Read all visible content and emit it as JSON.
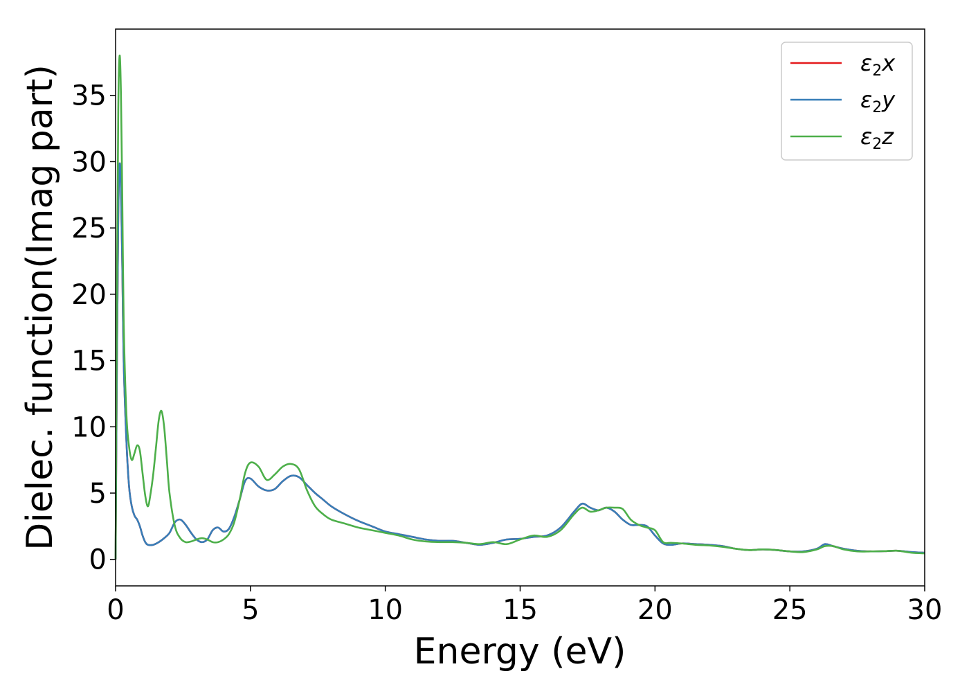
{
  "chart_data": {
    "type": "line",
    "title": "",
    "xlabel": "Energy (eV)",
    "ylabel": "Dielec. function(Imag part)",
    "xlim": [
      0,
      30
    ],
    "ylim": [
      -2,
      40
    ],
    "xticks": [
      0,
      5,
      10,
      15,
      20,
      25,
      30
    ],
    "yticks": [
      0,
      5,
      10,
      15,
      20,
      25,
      30,
      35
    ],
    "grid": false,
    "legend_position": "top-right",
    "series": [
      {
        "name_prefix": "ε",
        "name_sub": "2",
        "name_suffix": "x",
        "color": "#e41a1c",
        "x": [
          0,
          0.05,
          0.1,
          0.15,
          0.2,
          0.25,
          0.3,
          0.4,
          0.5,
          0.6,
          0.7,
          0.8,
          0.9,
          1.0,
          1.1,
          1.2,
          1.4,
          1.6,
          1.8,
          2.0,
          2.2,
          2.4,
          2.6,
          2.8,
          3.0,
          3.2,
          3.4,
          3.6,
          3.8,
          4.0,
          4.2,
          4.4,
          4.6,
          4.8,
          5.0,
          5.3,
          5.6,
          5.9,
          6.2,
          6.5,
          6.8,
          7.1,
          7.4,
          7.7,
          8.0,
          8.5,
          9.0,
          9.5,
          10.0,
          10.5,
          11.0,
          11.5,
          12.0,
          12.5,
          13.0,
          13.5,
          14.0,
          14.5,
          15.0,
          15.5,
          16.0,
          16.5,
          17.0,
          17.3,
          17.6,
          17.9,
          18.2,
          18.5,
          18.8,
          19.1,
          19.4,
          19.7,
          20.0,
          20.3,
          20.6,
          21.0,
          21.5,
          22.0,
          22.5,
          23.0,
          23.5,
          24.0,
          24.5,
          25.0,
          25.5,
          26.0,
          26.3,
          26.6,
          27.0,
          27.5,
          28.0,
          28.5,
          29.0,
          29.5,
          30.0
        ],
        "y": [
          0,
          15,
          26,
          29.8,
          28,
          22,
          15,
          9,
          5.5,
          4.0,
          3.3,
          3.0,
          2.5,
          1.8,
          1.3,
          1.1,
          1.1,
          1.3,
          1.6,
          2.0,
          2.8,
          3.0,
          2.6,
          2.0,
          1.5,
          1.3,
          1.5,
          2.2,
          2.4,
          2.1,
          2.3,
          3.2,
          4.5,
          5.9,
          6.1,
          5.5,
          5.2,
          5.3,
          5.9,
          6.3,
          6.2,
          5.6,
          5.0,
          4.5,
          4.0,
          3.4,
          2.9,
          2.5,
          2.1,
          1.9,
          1.7,
          1.5,
          1.4,
          1.4,
          1.25,
          1.1,
          1.25,
          1.5,
          1.55,
          1.7,
          1.8,
          2.4,
          3.6,
          4.2,
          3.9,
          3.7,
          3.9,
          3.6,
          3.0,
          2.6,
          2.6,
          2.5,
          1.8,
          1.2,
          1.1,
          1.2,
          1.15,
          1.1,
          1.0,
          0.8,
          0.7,
          0.75,
          0.7,
          0.6,
          0.6,
          0.8,
          1.15,
          1.0,
          0.8,
          0.65,
          0.6,
          0.62,
          0.65,
          0.55,
          0.5
        ]
      },
      {
        "name_prefix": "ε",
        "name_sub": "2",
        "name_suffix": "y",
        "color": "#377eb8",
        "x": [
          0,
          0.05,
          0.1,
          0.15,
          0.2,
          0.25,
          0.3,
          0.4,
          0.5,
          0.6,
          0.7,
          0.8,
          0.9,
          1.0,
          1.1,
          1.2,
          1.4,
          1.6,
          1.8,
          2.0,
          2.2,
          2.4,
          2.6,
          2.8,
          3.0,
          3.2,
          3.4,
          3.6,
          3.8,
          4.0,
          4.2,
          4.4,
          4.6,
          4.8,
          5.0,
          5.3,
          5.6,
          5.9,
          6.2,
          6.5,
          6.8,
          7.1,
          7.4,
          7.7,
          8.0,
          8.5,
          9.0,
          9.5,
          10.0,
          10.5,
          11.0,
          11.5,
          12.0,
          12.5,
          13.0,
          13.5,
          14.0,
          14.5,
          15.0,
          15.5,
          16.0,
          16.5,
          17.0,
          17.3,
          17.6,
          17.9,
          18.2,
          18.5,
          18.8,
          19.1,
          19.4,
          19.7,
          20.0,
          20.3,
          20.6,
          21.0,
          21.5,
          22.0,
          22.5,
          23.0,
          23.5,
          24.0,
          24.5,
          25.0,
          25.5,
          26.0,
          26.3,
          26.6,
          27.0,
          27.5,
          28.0,
          28.5,
          29.0,
          29.5,
          30.0
        ],
        "y": [
          0,
          15,
          26,
          29.8,
          28,
          22,
          15,
          9,
          5.5,
          4.0,
          3.3,
          3.0,
          2.5,
          1.8,
          1.3,
          1.1,
          1.1,
          1.3,
          1.6,
          2.0,
          2.8,
          3.0,
          2.6,
          2.0,
          1.5,
          1.3,
          1.5,
          2.2,
          2.4,
          2.1,
          2.3,
          3.2,
          4.5,
          5.9,
          6.1,
          5.5,
          5.2,
          5.3,
          5.9,
          6.3,
          6.2,
          5.6,
          5.0,
          4.5,
          4.0,
          3.4,
          2.9,
          2.5,
          2.1,
          1.9,
          1.7,
          1.5,
          1.4,
          1.4,
          1.25,
          1.1,
          1.25,
          1.5,
          1.55,
          1.7,
          1.8,
          2.4,
          3.6,
          4.2,
          3.9,
          3.7,
          3.9,
          3.6,
          3.0,
          2.6,
          2.6,
          2.5,
          1.8,
          1.2,
          1.1,
          1.2,
          1.15,
          1.1,
          1.0,
          0.8,
          0.7,
          0.75,
          0.7,
          0.6,
          0.6,
          0.8,
          1.15,
          1.0,
          0.8,
          0.65,
          0.6,
          0.62,
          0.65,
          0.55,
          0.5
        ]
      },
      {
        "name_prefix": "ε",
        "name_sub": "2",
        "name_suffix": "z",
        "color": "#4daf4a",
        "x": [
          0,
          0.05,
          0.1,
          0.15,
          0.2,
          0.25,
          0.3,
          0.4,
          0.5,
          0.6,
          0.7,
          0.8,
          0.9,
          1.0,
          1.1,
          1.2,
          1.3,
          1.4,
          1.5,
          1.6,
          1.7,
          1.8,
          1.9,
          2.0,
          2.2,
          2.4,
          2.6,
          2.8,
          3.0,
          3.2,
          3.4,
          3.6,
          3.8,
          4.0,
          4.2,
          4.4,
          4.6,
          4.8,
          5.0,
          5.3,
          5.6,
          5.9,
          6.2,
          6.5,
          6.8,
          7.1,
          7.4,
          7.7,
          8.0,
          8.5,
          9.0,
          9.5,
          10.0,
          10.5,
          11.0,
          11.5,
          12.0,
          12.5,
          13.0,
          13.5,
          14.0,
          14.5,
          15.0,
          15.5,
          16.0,
          16.5,
          17.0,
          17.3,
          17.6,
          17.9,
          18.2,
          18.5,
          18.8,
          19.1,
          19.4,
          19.7,
          20.0,
          20.3,
          20.6,
          21.0,
          21.5,
          22.0,
          22.5,
          23.0,
          23.5,
          24.0,
          24.5,
          25.0,
          25.5,
          26.0,
          26.3,
          26.6,
          27.0,
          27.5,
          28.0,
          28.5,
          29.0,
          29.5,
          30.0
        ],
        "y": [
          0,
          20,
          34,
          38,
          35,
          27,
          18,
          11,
          8.5,
          7.5,
          8.0,
          8.6,
          8.2,
          6.5,
          4.8,
          4.0,
          5.0,
          6.5,
          8.5,
          10.5,
          11.2,
          10.0,
          7.5,
          5.0,
          2.5,
          1.6,
          1.3,
          1.35,
          1.5,
          1.6,
          1.5,
          1.3,
          1.3,
          1.5,
          1.9,
          2.8,
          4.5,
          6.5,
          7.3,
          7.0,
          6.0,
          6.4,
          7.0,
          7.2,
          6.8,
          5.2,
          4.0,
          3.4,
          3.0,
          2.7,
          2.4,
          2.2,
          2.0,
          1.8,
          1.5,
          1.35,
          1.3,
          1.3,
          1.25,
          1.15,
          1.3,
          1.15,
          1.5,
          1.8,
          1.7,
          2.2,
          3.4,
          3.9,
          3.6,
          3.7,
          3.9,
          3.9,
          3.8,
          3.0,
          2.6,
          2.4,
          2.2,
          1.3,
          1.25,
          1.2,
          1.1,
          1.05,
          0.95,
          0.8,
          0.7,
          0.75,
          0.7,
          0.6,
          0.55,
          0.75,
          1.0,
          1.0,
          0.75,
          0.6,
          0.6,
          0.62,
          0.65,
          0.5,
          0.45
        ]
      }
    ]
  }
}
